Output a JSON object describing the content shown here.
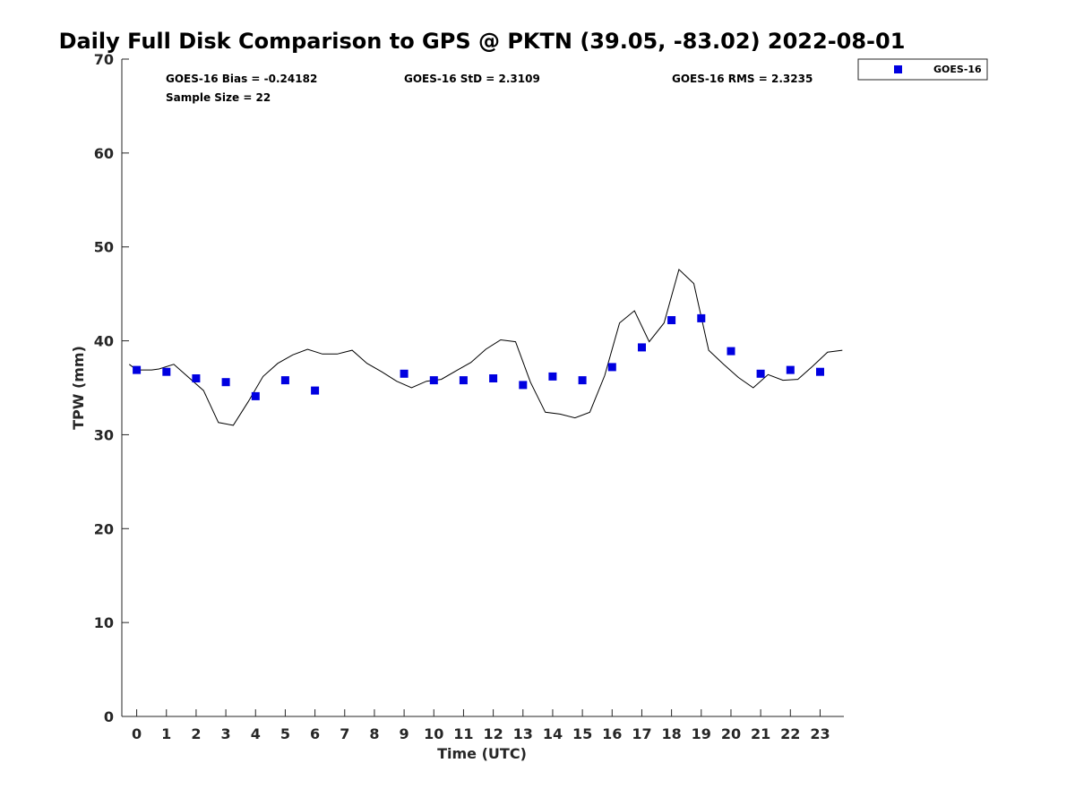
{
  "chart_data": {
    "type": "line",
    "title": "Daily Full Disk Comparison to GPS @ PKTN (39.05, -83.02) 2022-08-01",
    "xlabel": "Time (UTC)",
    "ylabel": "TPW (mm)",
    "xlim": [
      -0.5,
      23.8
    ],
    "ylim": [
      0,
      70
    ],
    "xticks": [
      0,
      1,
      2,
      3,
      4,
      5,
      6,
      7,
      8,
      9,
      10,
      11,
      12,
      13,
      14,
      15,
      16,
      17,
      18,
      19,
      20,
      21,
      22,
      23
    ],
    "yticks": [
      0,
      10,
      20,
      30,
      40,
      50,
      60,
      70
    ],
    "grid": false,
    "legend_position": "outside top-right",
    "stats": {
      "bias": "GOES-16 Bias = -0.24182",
      "std": "GOES-16 StD = 2.3109",
      "rms": "GOES-16 RMS = 2.3235",
      "sample": "Sample Size = 22"
    },
    "series": [
      {
        "kind": "line",
        "color": "#000000",
        "x": [
          -0.25,
          0.0,
          0.5,
          0.75,
          1.25,
          1.5,
          2.25,
          2.75,
          3.25,
          3.75,
          4.25,
          4.75,
          5.25,
          5.75,
          6.25,
          6.75,
          7.25,
          7.75,
          8.25,
          8.75,
          9.25,
          9.75,
          10.25,
          10.75,
          11.25,
          11.75,
          12.25,
          12.75,
          13.25,
          13.75,
          14.25,
          14.75,
          15.25,
          15.75,
          16.25,
          16.75,
          17.25,
          17.75,
          18.25,
          18.75,
          19.25,
          19.75,
          20.25,
          20.75,
          21.25,
          21.75,
          22.25,
          22.75,
          23.25,
          23.75
        ],
        "y": [
          37.5,
          36.9,
          36.9,
          37.0,
          37.5,
          36.8,
          34.7,
          31.3,
          31.0,
          33.5,
          36.2,
          37.6,
          38.5,
          39.1,
          38.6,
          38.6,
          39.0,
          37.6,
          36.7,
          35.7,
          35.0,
          35.7,
          35.9,
          36.8,
          37.7,
          39.1,
          40.1,
          39.9,
          35.6,
          32.4,
          32.2,
          31.8,
          32.4,
          36.3,
          41.9,
          43.2,
          39.9,
          41.9,
          47.6,
          46.1,
          39.0,
          37.5,
          36.1,
          35.0,
          36.4,
          35.8,
          35.9,
          37.3,
          38.8,
          39.0
        ]
      },
      {
        "name": "GOES-16",
        "kind": "scatter",
        "color": "#0000e0",
        "x": [
          0,
          1,
          2,
          3,
          4,
          5,
          6,
          9,
          10,
          11,
          12,
          13,
          14,
          15,
          16,
          17,
          18,
          19,
          20,
          21,
          22,
          23
        ],
        "y": [
          36.9,
          36.7,
          36.0,
          35.6,
          34.1,
          35.8,
          34.7,
          36.5,
          35.8,
          35.8,
          36.0,
          35.3,
          36.2,
          35.8,
          37.2,
          39.3,
          42.2,
          42.4,
          38.9,
          36.5,
          36.9,
          36.7
        ]
      }
    ]
  }
}
